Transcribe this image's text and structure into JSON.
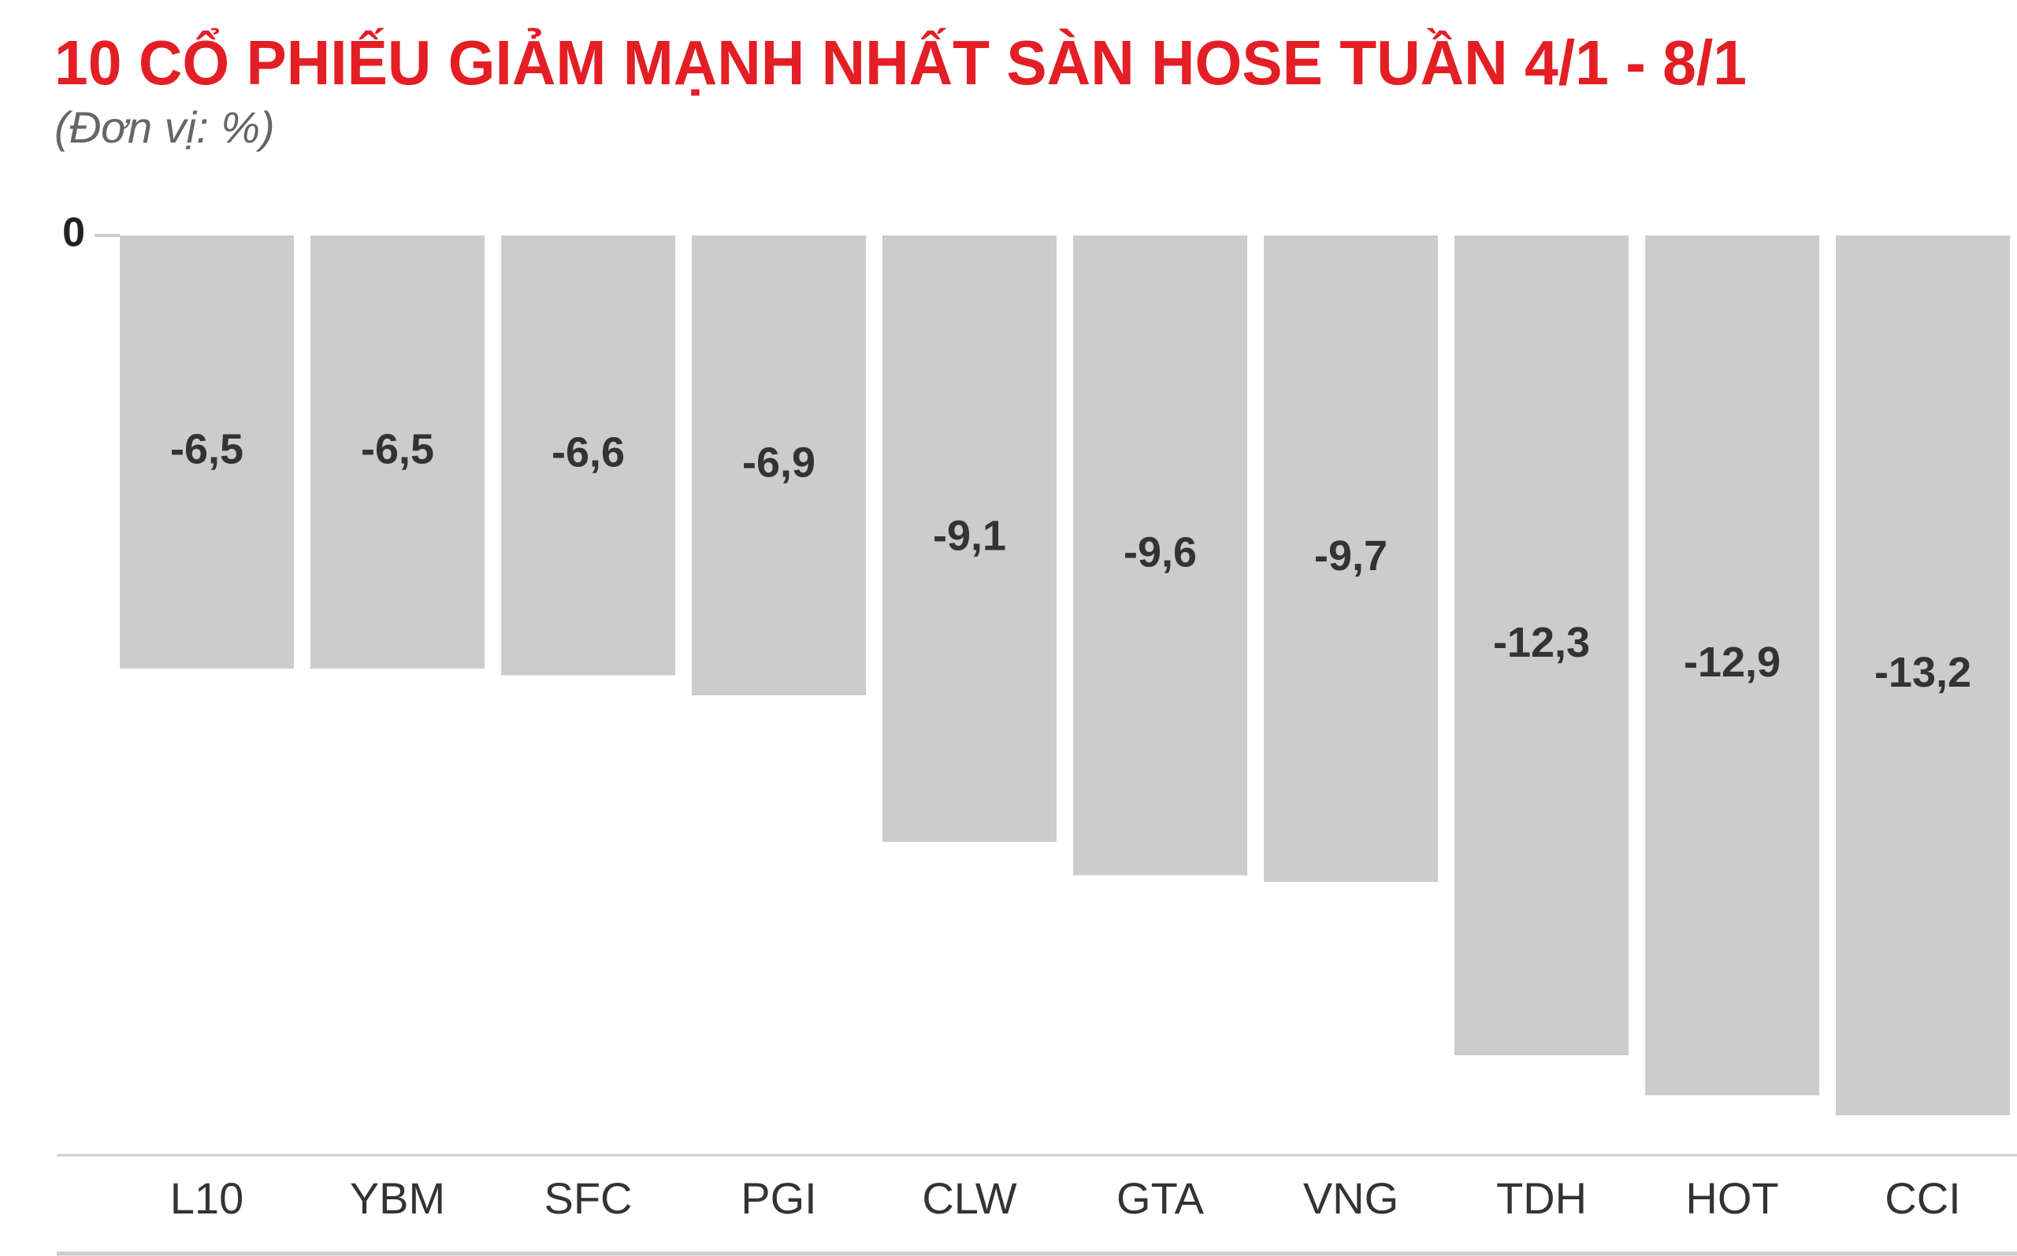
{
  "chart_data": {
    "type": "bar",
    "title": "10 CỔ PHIẾU GIẢM MẠNH NHẤT SÀN HOSE TUẦN 4/1 - 8/1",
    "subtitle": "(Đơn vị: %)",
    "categories": [
      "L10",
      "YBM",
      "SFC",
      "PGI",
      "CLW",
      "GTA",
      "VNG",
      "TDH",
      "HOT",
      "CCI"
    ],
    "values": [
      -6.5,
      -6.5,
      -6.6,
      -6.9,
      -9.1,
      -9.6,
      -9.7,
      -12.3,
      -12.9,
      -13.2
    ],
    "value_labels": [
      "-6,5",
      "-6,5",
      "-6,6",
      "-6,9",
      "-9,1",
      "-9,6",
      "-9,7",
      "-12,3",
      "-12,9",
      "-13,2"
    ],
    "color": "#cccccc",
    "ylim": [
      -13.8,
      0
    ],
    "yticks": [
      0
    ],
    "grid": false
  }
}
